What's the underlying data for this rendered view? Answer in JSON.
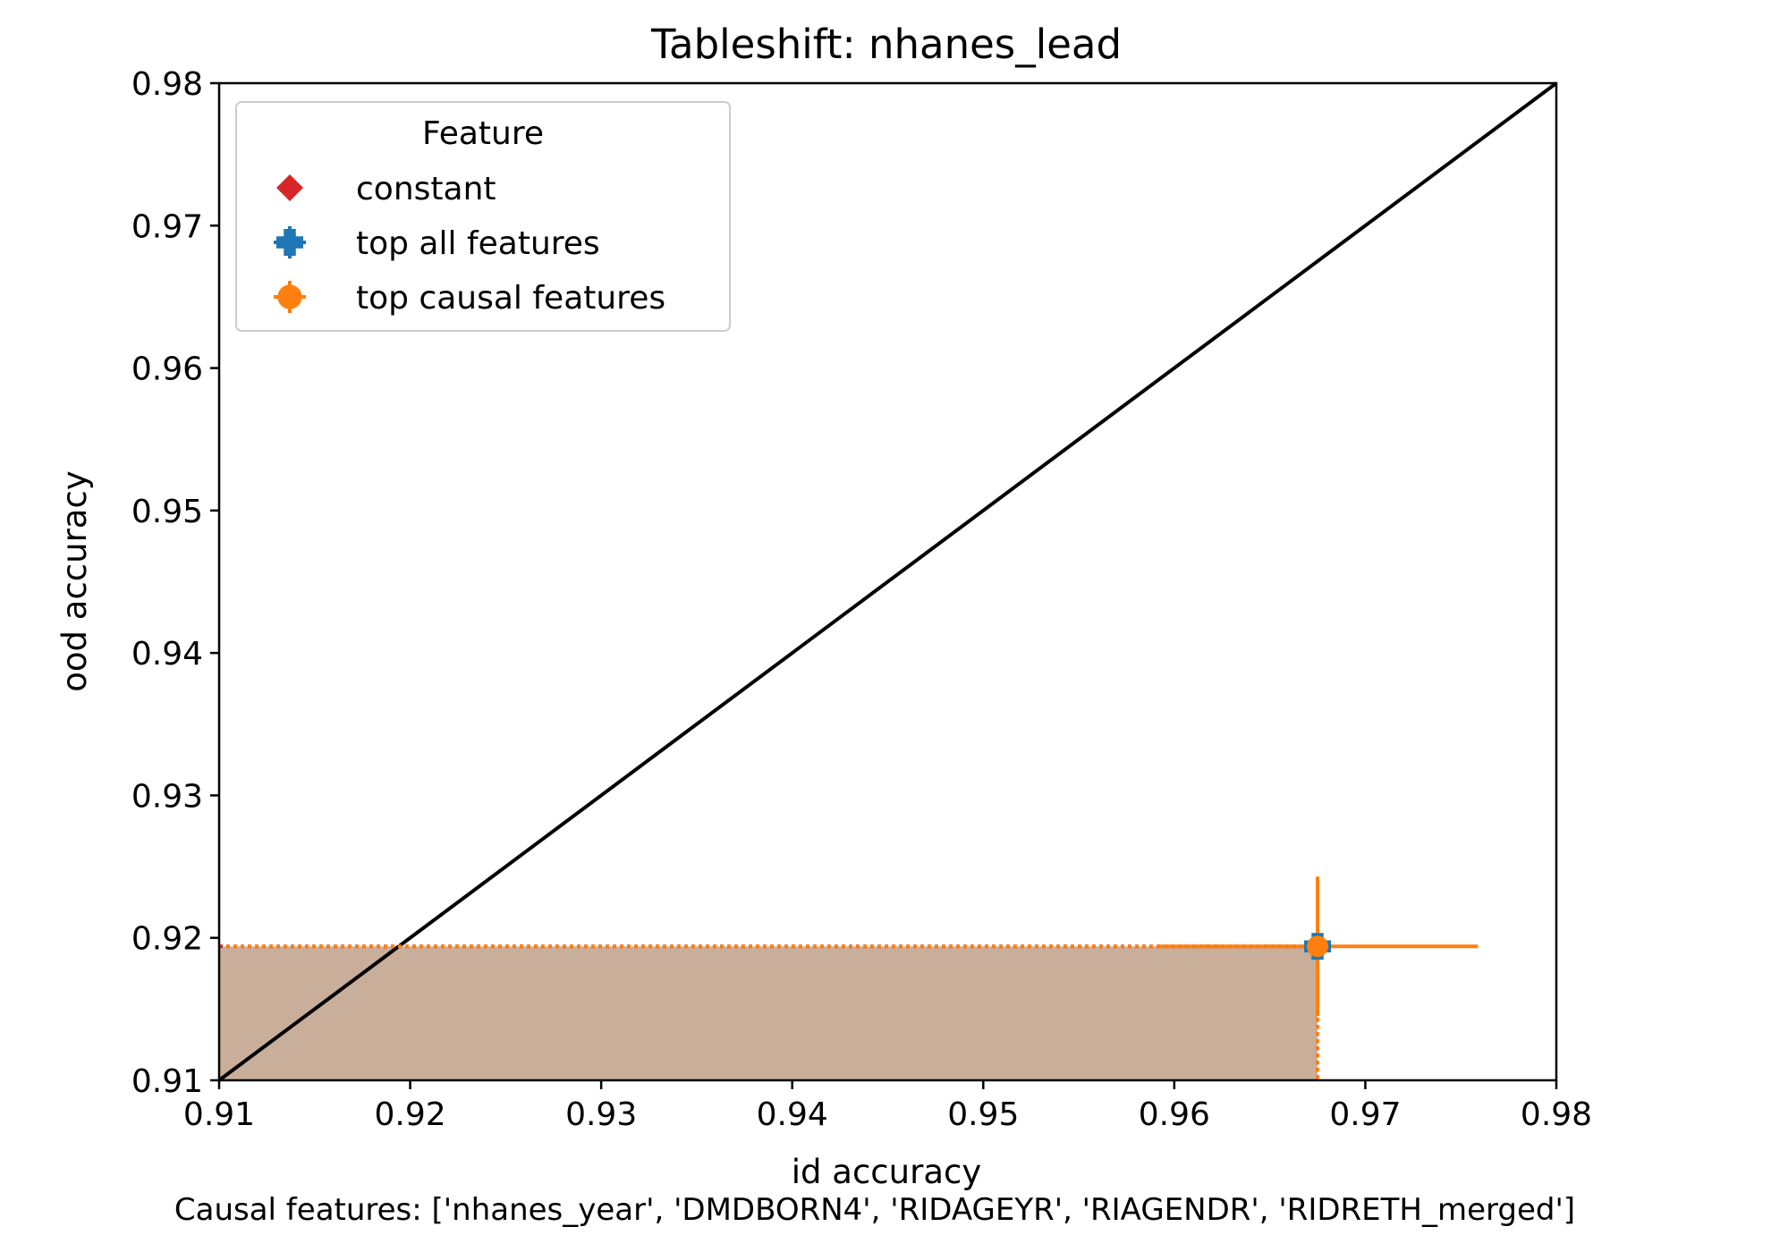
{
  "chart_data": {
    "type": "scatter",
    "title": "Tableshift: nhanes_lead",
    "xlabel": "id accuracy",
    "ylabel": "ood accuracy",
    "xlim": [
      0.91,
      0.98
    ],
    "ylim": [
      0.91,
      0.98
    ],
    "x_ticks": [
      "0.91",
      "0.92",
      "0.93",
      "0.94",
      "0.95",
      "0.96",
      "0.97",
      "0.98"
    ],
    "y_ticks": [
      "0.91",
      "0.92",
      "0.93",
      "0.94",
      "0.95",
      "0.96",
      "0.97",
      "0.98"
    ],
    "grid": false,
    "diagonal_line": true,
    "legend": {
      "title": "Feature",
      "placement": "upper-left",
      "entries": [
        {
          "label": "constant",
          "marker": "diamond",
          "color": "#d62728"
        },
        {
          "label": "top all features",
          "marker": "plus",
          "color": "#1f77b4"
        },
        {
          "label": "top causal features",
          "marker": "circle",
          "color": "#ff7f0e"
        }
      ]
    },
    "series": [
      {
        "name": "constant",
        "x": 0.9675,
        "y": 0.9194,
        "color": "#d62728",
        "marker": "diamond"
      },
      {
        "name": "top all features",
        "x": 0.9675,
        "y": 0.9194,
        "xerr": 0.0,
        "yerr": 0.0,
        "color": "#1f77b4",
        "marker": "plus"
      },
      {
        "name": "top causal features",
        "x": 0.9675,
        "y": 0.9194,
        "xerr": 0.0084,
        "yerr": 0.0049,
        "color": "#ff7f0e",
        "marker": "circle"
      }
    ],
    "shaded_region": {
      "x": [
        0.91,
        0.9675
      ],
      "y": [
        0.91,
        0.9194
      ],
      "color": "#c9ae9a"
    },
    "caption": "Causal features: ['nhanes_year', 'DMDBORN4', 'RIDAGEYR', 'RIAGENDR', 'RIDRETH_merged']"
  }
}
